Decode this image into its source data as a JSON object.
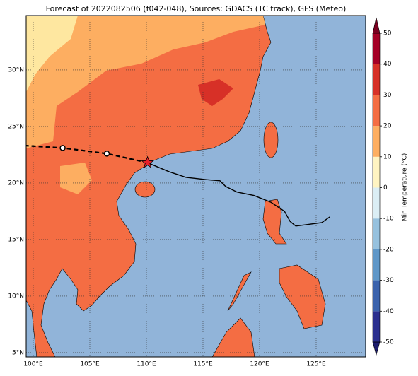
{
  "map": {
    "title": "Forecast of 2022082506 (f042-048), Sources: GDACS (TC track), GFS (Meteo)",
    "lonlim": [
      99.375,
      129.375
    ],
    "latlim": [
      4.62,
      34.81
    ],
    "lon_ticks": [
      {
        "value": 100,
        "label": "100°E"
      },
      {
        "value": 105,
        "label": "105°E"
      },
      {
        "value": 110,
        "label": "110°E"
      },
      {
        "value": 115,
        "label": "115°E"
      },
      {
        "value": 120,
        "label": "120°E"
      },
      {
        "value": 125,
        "label": "125°E"
      }
    ],
    "lat_ticks": [
      {
        "value": 5,
        "label": "5°N"
      },
      {
        "value": 10,
        "label": "10°N"
      },
      {
        "value": 15,
        "label": "15°N"
      },
      {
        "value": 20,
        "label": "20°N"
      },
      {
        "value": 25,
        "label": "25°N"
      },
      {
        "value": 30,
        "label": "30°N"
      }
    ],
    "grid": true,
    "track": {
      "lon": [
        126.2,
        125.5,
        124.0,
        123.2,
        122.7,
        122.2,
        121.0,
        119.5,
        118.0,
        117.0,
        116.5,
        115.3,
        113.5,
        112.0,
        110.8,
        110.1
      ],
      "lat": [
        17.0,
        16.5,
        16.3,
        16.2,
        16.6,
        17.5,
        18.3,
        18.9,
        19.2,
        19.7,
        20.2,
        20.3,
        20.5,
        21.0,
        21.5,
        21.8
      ],
      "color": "#000000"
    },
    "forecast": {
      "lon": [
        110.1,
        106.5,
        102.6,
        99.4
      ],
      "lat": [
        21.8,
        22.6,
        23.1,
        23.3
      ],
      "color": "#000000"
    },
    "positions": {
      "lon": [
        106.5,
        102.6
      ],
      "lat": [
        22.6,
        23.1
      ]
    },
    "current": {
      "lon": 110.1,
      "lat": 21.8,
      "color": "#e8202a"
    },
    "colorbar": {
      "label": "Min Temperature (°C)",
      "lim": [
        -50,
        50
      ],
      "ticks": [
        -50,
        -40,
        -30,
        -20,
        -10,
        0,
        10,
        20,
        30,
        40,
        50
      ],
      "colors": [
        "#2b2f8f",
        "#3b63ad",
        "#5f97c8",
        "#96c1de",
        "#dbeef5",
        "#fff4c2",
        "#fdae61",
        "#f46d43",
        "#d73027",
        "#a50026"
      ],
      "under_color": "#1c1c6e",
      "over_color": "#7a0020"
    }
  }
}
